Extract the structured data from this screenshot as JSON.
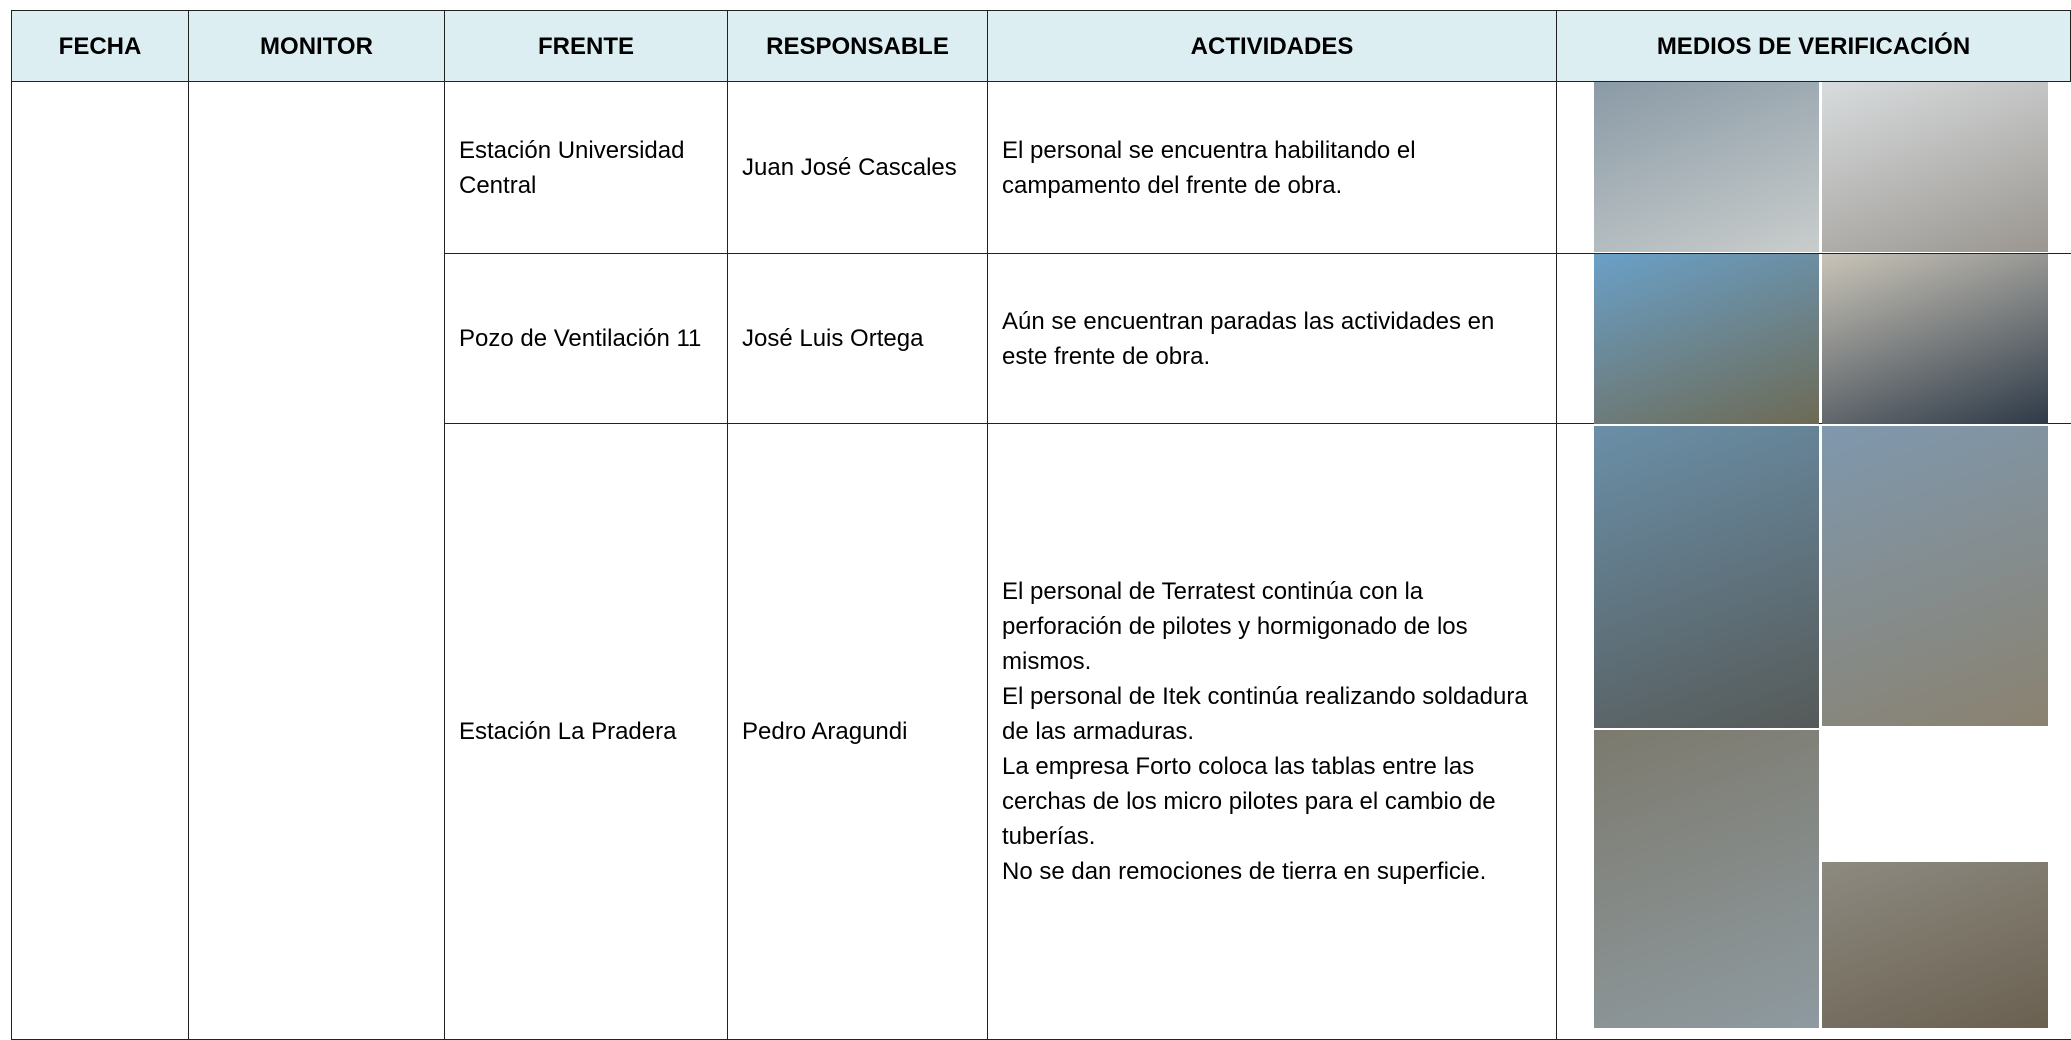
{
  "table": {
    "headers": [
      "FECHA",
      "MONITOR",
      "FRENTE",
      "RESPONSABLE",
      "ACTIVIDADES",
      "MEDIOS DE VERIFICACIÓN"
    ],
    "rows": [
      {
        "frente": "Estación Universidad Central",
        "responsable": "Juan José Cascales",
        "actividades": [
          "El personal se encuentra habilitando el campamento del frente de obra."
        ]
      },
      {
        "frente": "Pozo de Ventilación 11",
        "responsable": "José Luis Ortega",
        "actividades": [
          "Aún se encuentran paradas las actividades en este frente de obra."
        ]
      },
      {
        "frente": "Estación La Pradera",
        "responsable": "Pedro Aragundi",
        "actividades": [
          "El personal de Terratest continúa con la perforación de pilotes y hormigonado de los mismos.",
          "El personal de Itek continúa realizando soldadura de las armaduras.",
          "La empresa Forto coloca las tablas entre las cerchas de los micro pilotes para el cambio de tuberías.",
          "No se dan remociones de tierra en superficie."
        ]
      }
    ]
  }
}
